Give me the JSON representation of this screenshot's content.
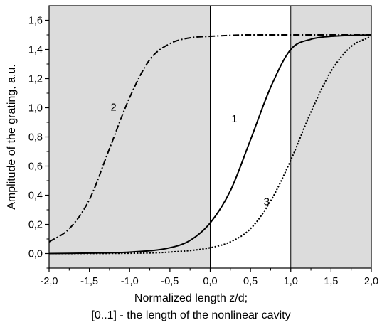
{
  "chart_data": {
    "type": "line",
    "xlabel": "Normalized length z/d;",
    "xlabel_line2": "[0..1] - the length of the nonlinear cavity",
    "ylabel": "Amplitude of the grating, a.u.",
    "xlim": [
      -2.0,
      2.0
    ],
    "ylim": [
      -0.1,
      1.7
    ],
    "x_ticks": [
      "-2,0",
      "-1,5",
      "-1,0",
      "-0,5",
      "0,0",
      "0,5",
      "1,0",
      "1,5",
      "2,0"
    ],
    "y_ticks": [
      "0,0",
      "0,2",
      "0,4",
      "0,6",
      "0,8",
      "1,0",
      "1,2",
      "1,4",
      "1,6"
    ],
    "shaded_regions": [
      [
        -2.0,
        0.0
      ],
      [
        1.0,
        2.0
      ]
    ],
    "vertical_lines": [
      0.0,
      1.0
    ],
    "series": [
      {
        "name": "1",
        "style": "solid",
        "x": [
          -2.0,
          -1.5,
          -1.0,
          -0.5,
          -0.25,
          0.0,
          0.25,
          0.5,
          0.75,
          1.0,
          1.25,
          1.5,
          2.0
        ],
        "values": [
          0.0,
          0.003,
          0.01,
          0.04,
          0.09,
          0.21,
          0.43,
          0.78,
          1.14,
          1.4,
          1.47,
          1.49,
          1.5
        ],
        "label_at": [
          0.3,
          0.92
        ]
      },
      {
        "name": "2",
        "style": "dashdot",
        "x": [
          -2.0,
          -1.75,
          -1.5,
          -1.25,
          -1.0,
          -0.75,
          -0.5,
          -0.25,
          0.0,
          0.5,
          1.0,
          2.0
        ],
        "values": [
          0.08,
          0.17,
          0.37,
          0.72,
          1.07,
          1.33,
          1.44,
          1.48,
          1.49,
          1.5,
          1.5,
          1.5
        ],
        "label_at": [
          -1.2,
          1.0
        ]
      },
      {
        "name": "3",
        "style": "dotted",
        "x": [
          -2.0,
          -1.0,
          -0.5,
          0.0,
          0.25,
          0.5,
          0.75,
          1.0,
          1.25,
          1.5,
          1.75,
          2.0
        ],
        "values": [
          0.0,
          0.002,
          0.01,
          0.04,
          0.08,
          0.17,
          0.36,
          0.64,
          0.97,
          1.25,
          1.42,
          1.49
        ],
        "label_at": [
          0.7,
          0.35
        ]
      }
    ]
  }
}
